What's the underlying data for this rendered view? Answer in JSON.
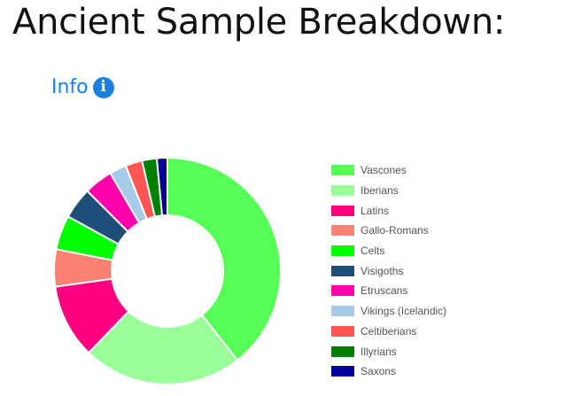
{
  "header": {
    "title": "Ancient Sample Breakdown:"
  },
  "info": {
    "label": "Info",
    "icon": "info-circle-icon",
    "icon_glyph": "i"
  },
  "chart_data": {
    "type": "doughnut",
    "legend_position": "right",
    "categories": [
      "Vascones",
      "Iberians",
      "Latins",
      "Gallo-Romans",
      "Celts",
      "Visigoths",
      "Etruscans",
      "Vikings (Icelandic)",
      "Celtiberians",
      "Illyrians",
      "Saxons"
    ],
    "values": [
      39.4,
      22.8,
      10.6,
      5.3,
      4.9,
      4.5,
      4.1,
      2.4,
      2.4,
      2.1,
      1.5
    ],
    "colors": [
      "#55ff55",
      "#99ff99",
      "#ff0080",
      "#fa8072",
      "#00ff00",
      "#1f4e79",
      "#ff00aa",
      "#a6cbe8",
      "#ff5555",
      "#008000",
      "#00009a"
    ]
  }
}
